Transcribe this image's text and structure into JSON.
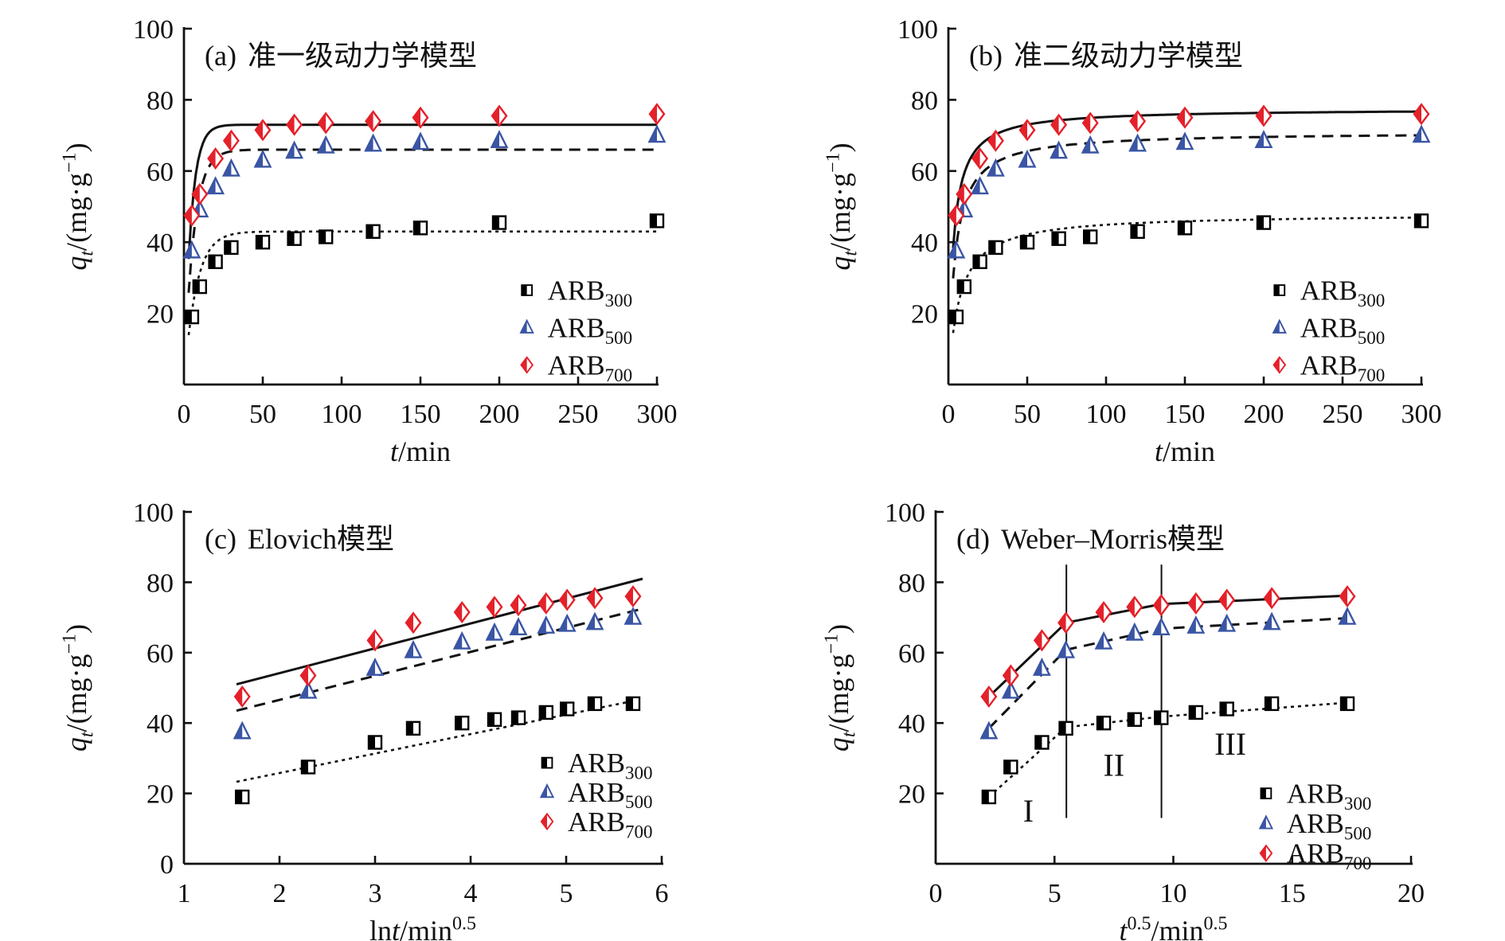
{
  "page": {
    "background": "#ffffff"
  },
  "figure": {
    "axis_color": "#111111",
    "series": [
      {
        "key": "arb300",
        "label": [
          {
            "t": "ARB"
          },
          {
            "t": "300",
            "sub": 1
          }
        ],
        "color": "#000000",
        "marker": "half-square",
        "fit_style": "dotted"
      },
      {
        "key": "arb500",
        "label": [
          {
            "t": "ARB"
          },
          {
            "t": "500",
            "sub": 1
          }
        ],
        "color": "#3a55a4",
        "marker": "half-triangle",
        "fit_style": "dashed"
      },
      {
        "key": "arb700",
        "label": [
          {
            "t": "ARB"
          },
          {
            "t": "700",
            "sub": 1
          }
        ],
        "color": "#e4212a",
        "marker": "half-diamond",
        "fit_style": "solid"
      }
    ]
  },
  "chart_data": [
    {
      "id": "a",
      "type": "scatter",
      "title": {
        "tag": "(a)",
        "text": "准一级动力学模型"
      },
      "xlabel": [
        {
          "t": "t",
          "i": 1
        },
        {
          "t": "/min"
        }
      ],
      "ylabel": [
        {
          "t": "q",
          "i": 1
        },
        {
          "t": "t",
          "i": 1,
          "sub": 1
        },
        {
          "t": "/(mg·g"
        },
        {
          "t": "−1",
          "sup": 1
        },
        {
          "t": ")"
        }
      ],
      "xlim": [
        0,
        300
      ],
      "ylim": [
        0,
        100
      ],
      "xticks": [
        0,
        50,
        100,
        150,
        200,
        250,
        300
      ],
      "yticks": [
        20,
        40,
        60,
        80,
        100
      ],
      "x": [
        5,
        10,
        20,
        30,
        50,
        70,
        90,
        120,
        150,
        200,
        300
      ],
      "series": [
        {
          "key": "arb300",
          "values": [
            19,
            27.5,
            34.5,
            38.5,
            40,
            41,
            41.5,
            43,
            44,
            45.5,
            46
          ],
          "fit": {
            "model": "pfo",
            "qe": 43,
            "k": 0.13,
            "t0": 3,
            "t1": 300
          }
        },
        {
          "key": "arb500",
          "values": [
            37.5,
            49,
            55.5,
            60.5,
            63,
            65.5,
            67,
            67.5,
            68,
            68.5,
            70
          ],
          "fit": {
            "model": "pfo",
            "qe": 66,
            "k": 0.165,
            "t0": 3,
            "t1": 300
          }
        },
        {
          "key": "arb700",
          "values": [
            47.5,
            53.5,
            63.5,
            68.5,
            71.5,
            73,
            73.5,
            74,
            75,
            75.5,
            76
          ],
          "fit": {
            "model": "pfo",
            "qe": 73,
            "k": 0.22,
            "t0": 3,
            "t1": 300
          }
        }
      ],
      "legend": {
        "fx": 0.725,
        "fy": [
          0.735,
          0.84,
          0.945
        ]
      }
    },
    {
      "id": "b",
      "type": "scatter",
      "title": {
        "tag": "(b)",
        "text": "准二级动力学模型"
      },
      "xlabel": [
        {
          "t": "t",
          "i": 1
        },
        {
          "t": "/min"
        }
      ],
      "ylabel": [
        {
          "t": "q",
          "i": 1
        },
        {
          "t": "t",
          "i": 1,
          "sub": 1
        },
        {
          "t": "/(mg·g"
        },
        {
          "t": "−1",
          "sup": 1
        },
        {
          "t": ")"
        }
      ],
      "xlim": [
        0,
        300
      ],
      "ylim": [
        0,
        100
      ],
      "xticks": [
        0,
        50,
        100,
        150,
        200,
        250,
        300
      ],
      "yticks": [
        20,
        40,
        60,
        80,
        100
      ],
      "x": [
        5,
        10,
        20,
        30,
        50,
        70,
        90,
        120,
        150,
        200,
        300
      ],
      "series": [
        {
          "key": "arb300",
          "values": [
            19,
            27.5,
            34.5,
            38.5,
            40,
            41,
            41.5,
            43,
            44,
            45.5,
            46
          ],
          "fit": {
            "model": "pso",
            "qe": 48,
            "k": 0.003,
            "t0": 3,
            "t1": 300
          }
        },
        {
          "key": "arb500",
          "values": [
            37.5,
            49,
            55.5,
            60.5,
            63,
            65.5,
            67,
            67.5,
            68,
            68.5,
            70
          ],
          "fit": {
            "model": "pso",
            "qe": 71,
            "k": 0.0034,
            "t0": 3,
            "t1": 300
          }
        },
        {
          "key": "arb700",
          "values": [
            47.5,
            53.5,
            63.5,
            68.5,
            71.5,
            73,
            73.5,
            74,
            75,
            75.5,
            76
          ],
          "fit": {
            "model": "pso",
            "qe": 77.5,
            "k": 0.0042,
            "t0": 3,
            "t1": 300
          }
        }
      ],
      "legend": {
        "fx": 0.7,
        "fy": [
          0.735,
          0.84,
          0.945
        ]
      }
    },
    {
      "id": "c",
      "type": "scatter",
      "title": {
        "tag": "(c)",
        "text": "Elovich模型"
      },
      "xlabel": [
        {
          "t": "ln"
        },
        {
          "t": "t",
          "i": 1
        },
        {
          "t": "/min"
        },
        {
          "t": "0.5",
          "sup": 1
        }
      ],
      "ylabel": [
        {
          "t": "q",
          "i": 1
        },
        {
          "t": "t",
          "i": 1,
          "sub": 1
        },
        {
          "t": "/(mg·g"
        },
        {
          "t": "−1",
          "sup": 1
        },
        {
          "t": ")"
        }
      ],
      "xlim": [
        1,
        6
      ],
      "ylim": [
        0,
        100
      ],
      "xticks": [
        1,
        2,
        3,
        4,
        5,
        6
      ],
      "yticks": [
        0,
        20,
        40,
        60,
        80,
        100
      ],
      "x": [
        1.61,
        2.3,
        3.0,
        3.4,
        3.91,
        4.25,
        4.5,
        4.79,
        5.01,
        5.3,
        5.7
      ],
      "series": [
        {
          "key": "arb300",
          "values": [
            19,
            27.5,
            34.5,
            38.5,
            40,
            41,
            41.5,
            43,
            44,
            45.5,
            45.5
          ],
          "fit": {
            "model": "linear",
            "x1": 1.55,
            "y1": 23.3,
            "x2": 5.8,
            "y2": 46.8
          }
        },
        {
          "key": "arb500",
          "values": [
            37.5,
            49,
            55.5,
            60.5,
            63,
            65.5,
            67,
            67.5,
            68,
            68.5,
            70
          ],
          "fit": {
            "model": "linear",
            "x1": 1.55,
            "y1": 43.5,
            "x2": 5.8,
            "y2": 72.5
          }
        },
        {
          "key": "arb700",
          "values": [
            47.5,
            53.5,
            63.5,
            68.5,
            71.5,
            73,
            73.5,
            74,
            75,
            75.5,
            76
          ],
          "fit": {
            "model": "linear",
            "x1": 1.55,
            "y1": 51.0,
            "x2": 5.8,
            "y2": 81.0
          }
        }
      ],
      "legend": {
        "fx": 0.76,
        "fy": [
          0.713,
          0.796,
          0.88
        ]
      }
    },
    {
      "id": "d",
      "type": "scatter",
      "title": {
        "tag": "(d)",
        "text": "Weber–Morris模型"
      },
      "xlabel": [
        {
          "t": "t",
          "i": 1
        },
        {
          "t": "0.5",
          "sup": 1
        },
        {
          "t": "/min"
        },
        {
          "t": "0.5",
          "sup": 1
        }
      ],
      "ylabel": [
        {
          "t": "q",
          "i": 1
        },
        {
          "t": "t",
          "i": 1,
          "sub": 1
        },
        {
          "t": "/(mg·g"
        },
        {
          "t": "−1",
          "sup": 1
        },
        {
          "t": ")"
        }
      ],
      "xlim": [
        0,
        20
      ],
      "ylim": [
        0,
        100
      ],
      "xticks": [
        0,
        5,
        10,
        15,
        20
      ],
      "yticks": [
        20,
        40,
        60,
        80,
        100
      ],
      "x": [
        2.24,
        3.16,
        4.47,
        5.48,
        7.07,
        8.37,
        9.49,
        10.95,
        12.25,
        14.14,
        17.32
      ],
      "series": [
        {
          "key": "arb300",
          "values": [
            19,
            27.5,
            34.5,
            38.5,
            40,
            41,
            41.5,
            43,
            44,
            45.5,
            45.5
          ],
          "fit": {
            "model": "polyline",
            "points": [
              [
                2.24,
                19
              ],
              [
                5.48,
                38.8
              ],
              [
                9.49,
                41.8
              ],
              [
                17.32,
                45.8
              ]
            ]
          }
        },
        {
          "key": "arb500",
          "values": [
            37.5,
            49,
            55.5,
            60.5,
            63,
            65.5,
            67,
            67.5,
            68,
            68.5,
            70
          ],
          "fit": {
            "model": "polyline",
            "points": [
              [
                2.24,
                38.5
              ],
              [
                5.48,
                60.8
              ],
              [
                9.49,
                66.8
              ],
              [
                17.32,
                69.8
              ]
            ]
          }
        },
        {
          "key": "arb700",
          "values": [
            47.5,
            53.5,
            63.5,
            68.5,
            71.5,
            73,
            73.5,
            74,
            75,
            75.5,
            76
          ],
          "fit": {
            "model": "polyline",
            "points": [
              [
                2.24,
                47.5
              ],
              [
                5.48,
                68.5
              ],
              [
                9.49,
                73.8
              ],
              [
                17.32,
                76.2
              ]
            ]
          }
        }
      ],
      "vlines": {
        "x": [
          5.5,
          9.5
        ],
        "y": [
          13,
          85
        ]
      },
      "regions": [
        {
          "text": "I",
          "x": 3.9,
          "y": 12
        },
        {
          "text": "II",
          "x": 7.5,
          "y": 25
        },
        {
          "text": "III",
          "x": 12.4,
          "y": 31
        }
      ],
      "legend": {
        "fx": 0.695,
        "fy": [
          0.8,
          0.885,
          0.97
        ]
      }
    }
  ]
}
